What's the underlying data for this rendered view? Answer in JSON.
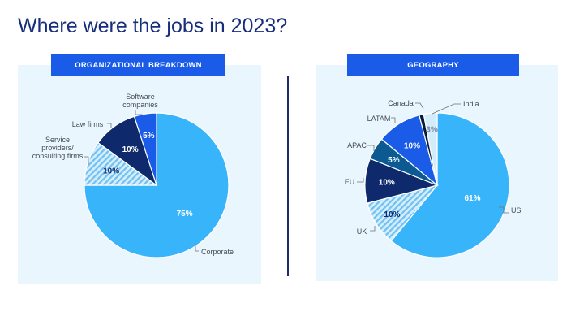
{
  "page": {
    "title": "Where were the jobs in 2023?"
  },
  "colors": {
    "title": "#172f7b",
    "header_bg": "#1a5ce8",
    "panel_bg": "#eaf6fd",
    "light_blue": "#38b4fb",
    "navy": "#0e2a6c",
    "royal_blue": "#1a5ce8",
    "teal_blue": "#0b5a91",
    "hatch": "#8fd0f7",
    "pale": "#d2ecfb",
    "black": "#0a1a3a"
  },
  "chart_data": [
    {
      "type": "pie",
      "title": "ORGANIZATIONAL BREAKDOWN",
      "slices": [
        {
          "label": "Corporate",
          "value": 75,
          "value_label": "75%",
          "color": "#38b4fb",
          "text_color": "#ffffff",
          "pattern": "solid"
        },
        {
          "label_lines": [
            "Service",
            "providers/",
            "consulting firms"
          ],
          "value": 10,
          "value_label": "10%",
          "color": "#8fd0f7",
          "text_color": "#0e2a6c",
          "pattern": "hatch"
        },
        {
          "label": "Law firms",
          "value": 10,
          "value_label": "10%",
          "color": "#0e2a6c",
          "text_color": "#ffffff",
          "pattern": "solid"
        },
        {
          "label_lines": [
            "Software",
            "companies"
          ],
          "value": 5,
          "value_label": "5%",
          "color": "#1a5ce8",
          "text_color": "#ffffff",
          "pattern": "solid"
        }
      ]
    },
    {
      "type": "pie",
      "title": "GEOGRAPHY",
      "slices": [
        {
          "label": "US",
          "value": 61,
          "value_label": "61%",
          "color": "#38b4fb",
          "text_color": "#ffffff",
          "pattern": "solid"
        },
        {
          "label": "UK",
          "value": 10,
          "value_label": "10%",
          "color": "#8fd0f7",
          "text_color": "#0e2a6c",
          "pattern": "hatch"
        },
        {
          "label": "EU",
          "value": 10,
          "value_label": "10%",
          "color": "#0e2a6c",
          "text_color": "#ffffff",
          "pattern": "solid"
        },
        {
          "label": "APAC",
          "value": 5,
          "value_label": "5%",
          "color": "#0b5a91",
          "text_color": "#ffffff",
          "pattern": "solid"
        },
        {
          "label": "LATAM",
          "value": 10,
          "value_label": "10%",
          "color": "#1a5ce8",
          "text_color": "#ffffff",
          "pattern": "solid"
        },
        {
          "label": "Canada",
          "value": 1,
          "value_label": "",
          "color": "#0a1a3a",
          "text_color": "#ffffff",
          "pattern": "solid"
        },
        {
          "label": "India",
          "value": 3,
          "value_label": "3%",
          "color": "#d2ecfb",
          "text_color": "#7a8aa6",
          "pattern": "solid"
        }
      ]
    }
  ]
}
